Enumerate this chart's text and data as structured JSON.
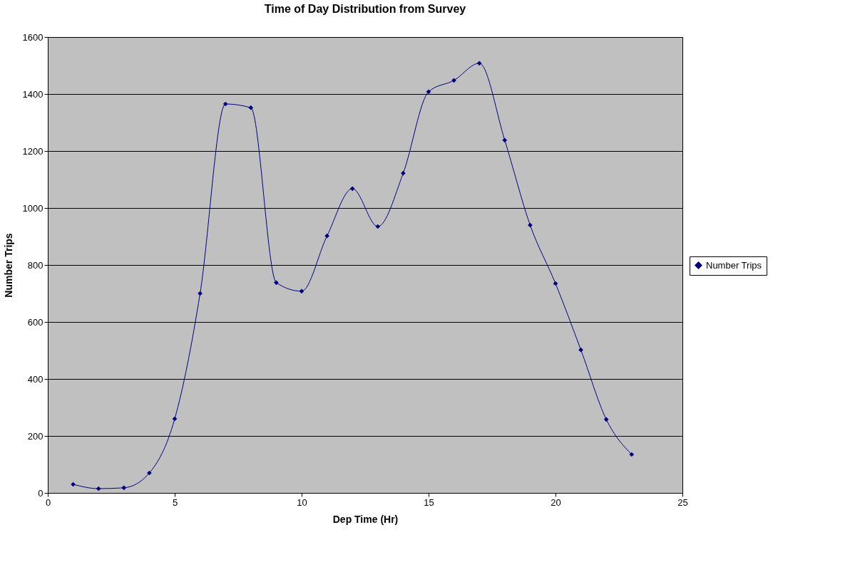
{
  "chart_data": {
    "type": "line",
    "title": "Time of Day Distribution from Survey",
    "xlabel": "Dep Time (Hr)",
    "ylabel": "Number Trips",
    "x": [
      1,
      2,
      3,
      4,
      5,
      6,
      7,
      8,
      9,
      10,
      11,
      12,
      13,
      14,
      15,
      16,
      17,
      18,
      19,
      20,
      21,
      22,
      23
    ],
    "series": [
      {
        "name": "Number Trips",
        "color": "#000080",
        "values": [
          30,
          15,
          18,
          70,
          260,
          700,
          1365,
          1352,
          738,
          708,
          902,
          1068,
          935,
          1122,
          1408,
          1448,
          1508,
          1238,
          940,
          735,
          502,
          258,
          135
        ]
      }
    ],
    "xlim": [
      0,
      25
    ],
    "xticks": [
      0,
      5,
      10,
      15,
      20,
      25
    ],
    "ylim": [
      0,
      1600
    ],
    "yticks": [
      0,
      200,
      400,
      600,
      800,
      1000,
      1200,
      1400,
      1600
    ],
    "grid": "y",
    "legend": "right",
    "marker": "diamond",
    "line_style": "solid"
  }
}
